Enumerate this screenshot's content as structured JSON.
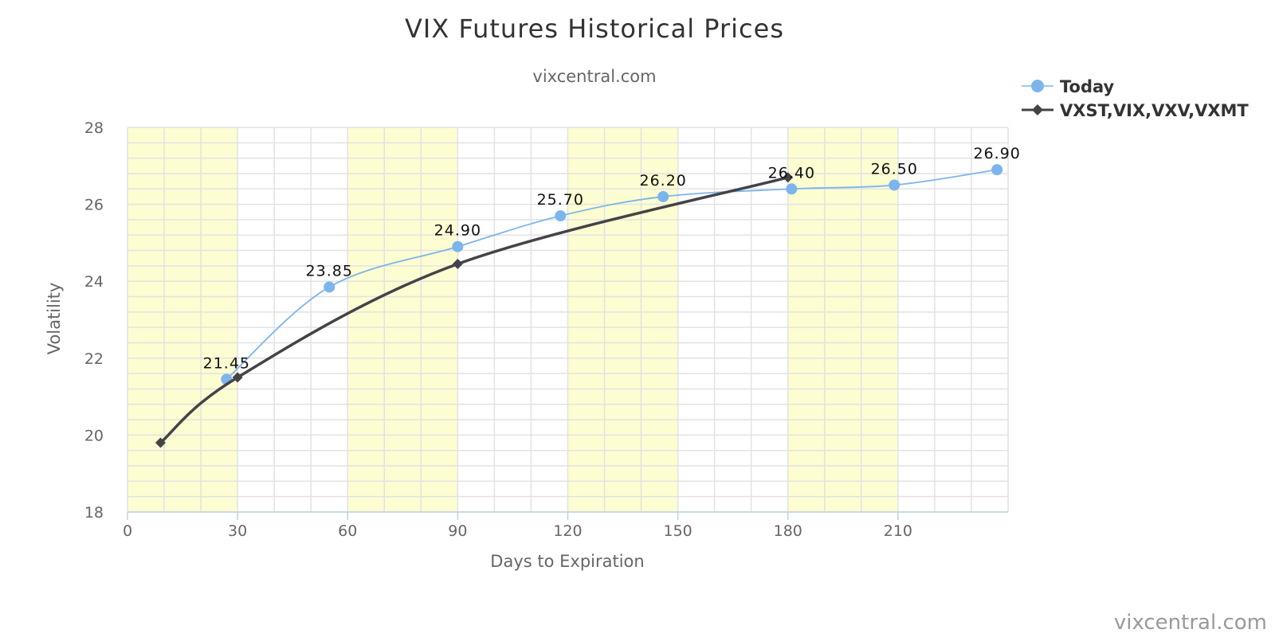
{
  "chart_data": {
    "type": "line",
    "title": "VIX Futures Historical Prices",
    "subtitle": "vixcentral.com",
    "xlabel": "Days to Expiration",
    "ylabel": "Volatility",
    "xlim": [
      0,
      240
    ],
    "ylim": [
      18,
      28
    ],
    "x_ticks": [
      0,
      30,
      60,
      90,
      120,
      150,
      180,
      210
    ],
    "y_ticks": [
      18,
      20,
      22,
      24,
      26,
      28
    ],
    "grid": true,
    "shaded_bands": [
      [
        0,
        30
      ],
      [
        60,
        90
      ],
      [
        120,
        150
      ],
      [
        180,
        210
      ]
    ],
    "legend_position": "top-right",
    "credit": "vixcentral.com",
    "series": [
      {
        "name": "Today",
        "color": "#7cb5ec",
        "marker": "circle",
        "show_labels": true,
        "points": [
          {
            "x": 27,
            "y": 21.45,
            "label": "21.45"
          },
          {
            "x": 55,
            "y": 23.85,
            "label": "23.85"
          },
          {
            "x": 90,
            "y": 24.9,
            "label": "24.90"
          },
          {
            "x": 118,
            "y": 25.7,
            "label": "25.70"
          },
          {
            "x": 146,
            "y": 26.2,
            "label": "26.20"
          },
          {
            "x": 181,
            "y": 26.4,
            "label": "26.40"
          },
          {
            "x": 209,
            "y": 26.5,
            "label": "26.50"
          },
          {
            "x": 237,
            "y": 26.9,
            "label": "26.90"
          }
        ]
      },
      {
        "name": "VXST,VIX,VXV,VXMT",
        "color": "#434348",
        "marker": "diamond",
        "show_labels": false,
        "points": [
          {
            "x": 9,
            "y": 19.8
          },
          {
            "x": 30,
            "y": 21.5
          },
          {
            "x": 90,
            "y": 24.45
          },
          {
            "x": 180,
            "y": 26.7
          }
        ]
      }
    ]
  },
  "colors": {
    "band": "#fdfdd2",
    "grid": "#e2e2e2",
    "axis": "#c0d0e0"
  }
}
